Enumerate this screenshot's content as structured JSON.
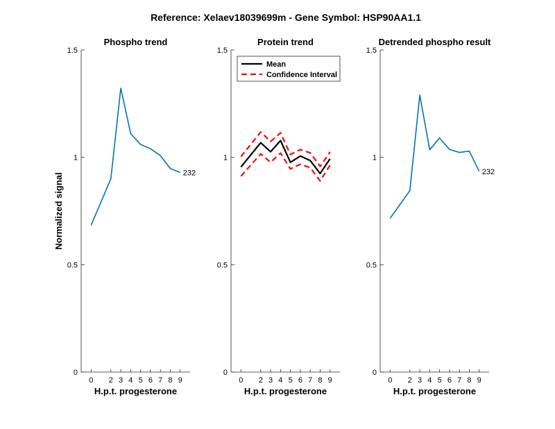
{
  "figure": {
    "suptitle": "Reference:  Xelaev18039699m - Gene Symbol:  HSP90AA1.1"
  },
  "chart_data": [
    {
      "type": "line",
      "title": "Phospho trend",
      "xlabel": "H.p.t. progesterone",
      "ylabel": "Normalized signal",
      "ylim": [
        0,
        1.5
      ],
      "x": [
        0,
        2,
        3,
        4,
        5,
        6,
        7,
        8,
        9
      ],
      "xticks": [
        "0",
        "2",
        "3",
        "4",
        "5",
        "6",
        "7",
        "8",
        "9"
      ],
      "yticks": [
        "0",
        "0.5",
        "1",
        "1.5"
      ],
      "series": [
        {
          "values": [
            0.684,
            0.9,
            1.322,
            1.11,
            1.06,
            1.04,
            1.008,
            0.948,
            0.929
          ],
          "color": "#0072BD",
          "end_label": "232"
        }
      ]
    },
    {
      "type": "line",
      "title": "Protein trend",
      "xlabel": "H.p.t. progesterone",
      "ylabel": "",
      "ylim": [
        0,
        1.5
      ],
      "x": [
        0,
        2,
        3,
        4,
        5,
        6,
        7,
        8,
        9
      ],
      "xticks": [
        "0",
        "2",
        "3",
        "4",
        "5",
        "6",
        "7",
        "8",
        "9"
      ],
      "yticks": [
        "0",
        "0.5",
        "1",
        "1.5"
      ],
      "legend": {
        "position": "top-left",
        "items": [
          "Mean",
          "Confidence Interval"
        ]
      },
      "series": [
        {
          "name": "Mean",
          "values": [
            0.955,
            1.068,
            1.026,
            1.078,
            0.977,
            1.006,
            0.985,
            0.925,
            0.993
          ],
          "color": "#000000",
          "style": "solid"
        },
        {
          "name": "Confidence Interval",
          "values": [
            1.003,
            1.118,
            1.074,
            1.114,
            1.013,
            1.036,
            1.021,
            0.958,
            1.025
          ],
          "color": "#ff0000",
          "style": "dashed"
        },
        {
          "name": "Confidence Interval",
          "values": [
            0.912,
            1.016,
            0.977,
            1.02,
            0.946,
            0.968,
            0.952,
            0.89,
            0.963
          ],
          "color": "#ff0000",
          "style": "dashed"
        }
      ]
    },
    {
      "type": "line",
      "title": "Detrended phospho result",
      "xlabel": "H.p.t. progesterone",
      "ylabel": "",
      "ylim": [
        0,
        1.5
      ],
      "x": [
        0,
        2,
        3,
        4,
        5,
        6,
        7,
        8,
        9
      ],
      "xticks": [
        "0",
        "2",
        "3",
        "4",
        "5",
        "6",
        "7",
        "8",
        "9"
      ],
      "yticks": [
        "0",
        "0.5",
        "1",
        "1.5"
      ],
      "series": [
        {
          "values": [
            0.716,
            0.845,
            1.29,
            1.035,
            1.09,
            1.037,
            1.023,
            1.029,
            0.935
          ],
          "color": "#0072BD",
          "end_label": "232"
        }
      ]
    }
  ]
}
